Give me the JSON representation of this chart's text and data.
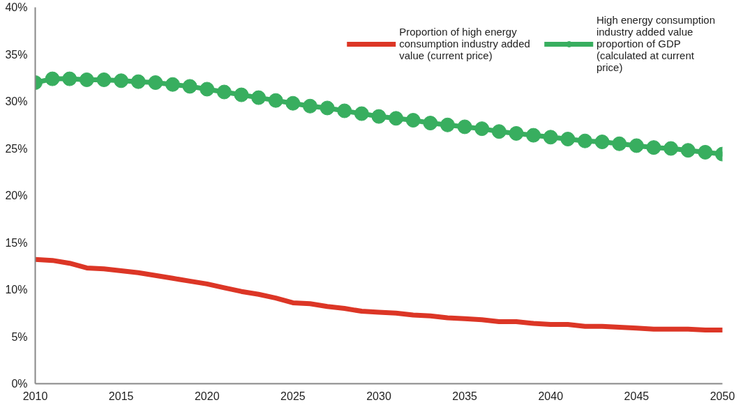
{
  "chart_data": {
    "type": "line",
    "x": [
      2010,
      2011,
      2012,
      2013,
      2014,
      2015,
      2016,
      2017,
      2018,
      2019,
      2020,
      2021,
      2022,
      2023,
      2024,
      2025,
      2026,
      2027,
      2028,
      2029,
      2030,
      2031,
      2032,
      2033,
      2034,
      2035,
      2036,
      2037,
      2038,
      2039,
      2040,
      2041,
      2042,
      2043,
      2044,
      2045,
      2046,
      2047,
      2048,
      2049,
      2050
    ],
    "series": [
      {
        "name": "Proportion of high energy consumption industry added value (current price)",
        "color": "#dc3626",
        "marker": "none",
        "values": [
          13.2,
          13.1,
          12.8,
          12.3,
          12.2,
          12.0,
          11.8,
          11.5,
          11.2,
          10.9,
          10.6,
          10.2,
          9.8,
          9.5,
          9.1,
          8.6,
          8.5,
          8.2,
          8.0,
          7.7,
          7.6,
          7.5,
          7.3,
          7.2,
          7.0,
          6.9,
          6.8,
          6.6,
          6.6,
          6.4,
          6.3,
          6.3,
          6.1,
          6.1,
          6.0,
          5.9,
          5.8,
          5.8,
          5.8,
          5.7,
          5.7
        ]
      },
      {
        "name": "High energy consumption industry added value proportion of GDP (calculated at current price)",
        "color": "#38ae5f",
        "marker": "circle",
        "values": [
          32.0,
          32.4,
          32.4,
          32.3,
          32.3,
          32.2,
          32.1,
          32.0,
          31.8,
          31.6,
          31.3,
          31.0,
          30.7,
          30.4,
          30.1,
          29.8,
          29.5,
          29.3,
          29.0,
          28.7,
          28.4,
          28.2,
          28.0,
          27.7,
          27.5,
          27.3,
          27.1,
          26.8,
          26.6,
          26.4,
          26.2,
          26.0,
          25.8,
          25.7,
          25.5,
          25.3,
          25.1,
          25.0,
          24.8,
          24.6,
          24.4
        ]
      }
    ],
    "xlim": [
      2010,
      2050
    ],
    "xticks": [
      2010,
      2015,
      2020,
      2025,
      2030,
      2035,
      2040,
      2045,
      2050
    ],
    "ylim": [
      0,
      40
    ],
    "yticks": [
      {
        "value": 0,
        "label": "0%"
      },
      {
        "value": 5,
        "label": "5%"
      },
      {
        "value": 10,
        "label": "10%"
      },
      {
        "value": 15,
        "label": "15%"
      },
      {
        "value": 20,
        "label": "20%"
      },
      {
        "value": 25,
        "label": "25%"
      },
      {
        "value": 30,
        "label": "30%"
      },
      {
        "value": 35,
        "label": "35%"
      },
      {
        "value": 40,
        "label": "40%"
      }
    ],
    "grid": false,
    "legend": "top right",
    "line_style": "solid"
  }
}
